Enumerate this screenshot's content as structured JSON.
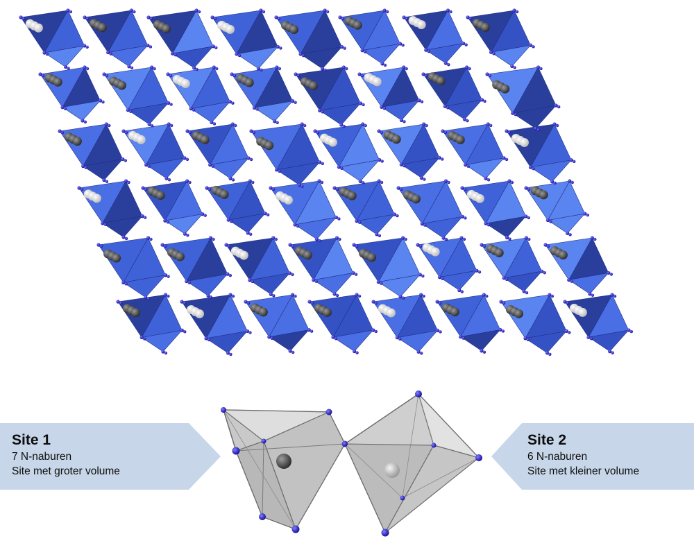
{
  "crystal": {
    "polyhedron_color": "#3f62d8",
    "polyhedron_light": "#5a84f0",
    "polyhedron_dark": "#2a3e9c",
    "anion_color": "#2a1fc9",
    "cation_site1_color": "#5a5a5a",
    "cation_site2_color": "#e8e8e8"
  },
  "sites": {
    "site1": {
      "title": "Site 1",
      "neighbors": "7 N-naburen",
      "description": "Site met groter volume",
      "polyhedron_color": "#c8c8c8",
      "ion_color": "#555555"
    },
    "site2": {
      "title": "Site 2",
      "neighbors": "6 N-naburen",
      "description": "Site met kleiner volume",
      "polyhedron_color": "#d2d2d2",
      "ion_color": "#cfcfcf"
    },
    "label_bg_color": "#c7d6e8"
  }
}
